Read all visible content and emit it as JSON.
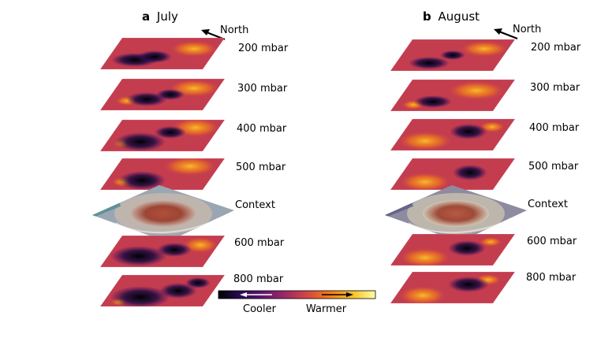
{
  "panels": [
    {
      "letter": "a",
      "title": "July",
      "north_label": "North",
      "layers": [
        "200 mbar",
        "300 mbar",
        "400 mbar",
        "500 mbar",
        "Context",
        "600 mbar",
        "800 mbar"
      ]
    },
    {
      "letter": "b",
      "title": "August",
      "north_label": "North",
      "layers": [
        "200 mbar",
        "300 mbar",
        "400 mbar",
        "500 mbar",
        "Context",
        "600 mbar",
        "800 mbar"
      ]
    }
  ],
  "colorbar": {
    "cool_label": "Cooler",
    "warm_label": "Warmer",
    "colormap": [
      "#000004",
      "#280b54",
      "#65156e",
      "#9f2a63",
      "#d44842",
      "#f57d15",
      "#fac228",
      "#fcffa4"
    ]
  },
  "context_colors": {
    "july": {
      "outer": "#9aa6b2",
      "ring": "#c7b9ad",
      "spot": "#a64a36",
      "edge": "#4e8d93"
    },
    "august": {
      "outer": "#8e8aa0",
      "ring": "#c9c0b0",
      "spot": "#a84f3c",
      "edge": "#5a5a86"
    }
  }
}
